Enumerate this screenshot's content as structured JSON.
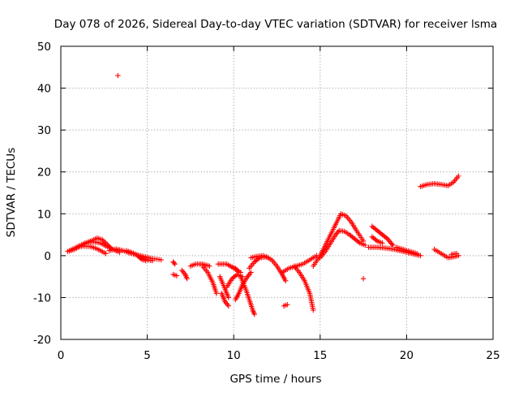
{
  "chart_data": {
    "type": "scatter",
    "title": "Day 078 of 2026, Sidereal Day-to-day VTEC variation (SDTVAR) for receiver lsma",
    "xlabel": "GPS time / hours",
    "ylabel": "SDTVAR / TECUs",
    "xlim": [
      0,
      25
    ],
    "ylim": [
      -20,
      50
    ],
    "xticks": [
      0,
      5,
      10,
      15,
      20,
      25
    ],
    "yticks": [
      -20,
      -10,
      0,
      10,
      20,
      30,
      40,
      50
    ],
    "grid": true,
    "marker": "+",
    "color": "#ff0000",
    "segments": [
      {
        "name": "arc-a",
        "points": [
          [
            0.4,
            1.0
          ],
          [
            0.8,
            1.5
          ],
          [
            1.2,
            2.5
          ],
          [
            1.6,
            3.2
          ],
          [
            1.9,
            3.3
          ],
          [
            2.3,
            3.0
          ],
          [
            2.6,
            2.3
          ],
          [
            3.0,
            1.5
          ],
          [
            3.4,
            0.8
          ]
        ]
      },
      {
        "name": "arc-b",
        "points": [
          [
            0.5,
            1.2
          ],
          [
            0.9,
            2.0
          ],
          [
            1.3,
            2.3
          ],
          [
            1.7,
            2.2
          ],
          [
            2.0,
            1.8
          ],
          [
            2.3,
            1.2
          ],
          [
            2.6,
            0.5
          ]
        ]
      },
      {
        "name": "arc-c",
        "points": [
          [
            1.0,
            2.2
          ],
          [
            1.4,
            3.0
          ],
          [
            1.8,
            3.6
          ],
          [
            2.1,
            4.2
          ],
          [
            2.4,
            3.8
          ],
          [
            2.7,
            2.6
          ],
          [
            2.9,
            1.8
          ]
        ]
      },
      {
        "name": "arc-d",
        "points": [
          [
            2.8,
            1.2
          ],
          [
            3.2,
            1.6
          ],
          [
            3.6,
            1.2
          ],
          [
            4.0,
            0.6
          ],
          [
            4.4,
            0.2
          ],
          [
            4.8,
            -0.2
          ],
          [
            5.2,
            -0.6
          ],
          [
            5.8,
            -1.0
          ]
        ]
      },
      {
        "name": "arc-e",
        "points": [
          [
            3.8,
            1.2
          ],
          [
            4.2,
            0.6
          ],
          [
            4.6,
            -0.3
          ],
          [
            5.0,
            -1.0
          ],
          [
            5.3,
            -1.2
          ]
        ]
      },
      {
        "name": "arc-f",
        "points": [
          [
            4.5,
            -0.3
          ],
          [
            4.7,
            -0.9
          ],
          [
            4.9,
            -1.2
          ]
        ]
      },
      {
        "name": "arc-g",
        "points": [
          [
            6.5,
            -1.5
          ],
          [
            6.6,
            -2.0
          ]
        ]
      },
      {
        "name": "arc-h",
        "points": [
          [
            6.5,
            -4.5
          ],
          [
            6.7,
            -4.8
          ]
        ]
      },
      {
        "name": "arc-i",
        "points": [
          [
            7.0,
            -3.5
          ],
          [
            7.2,
            -4.5
          ],
          [
            7.3,
            -5.5
          ]
        ]
      },
      {
        "name": "arc-j",
        "points": [
          [
            7.5,
            -2.5
          ],
          [
            7.8,
            -2.0
          ],
          [
            8.2,
            -2.0
          ],
          [
            8.6,
            -2.5
          ]
        ]
      },
      {
        "name": "arc-k",
        "points": [
          [
            8.2,
            -2.5
          ],
          [
            8.5,
            -4.0
          ],
          [
            8.8,
            -6.5
          ],
          [
            9.0,
            -9.0
          ]
        ]
      },
      {
        "name": "arc-l",
        "points": [
          [
            9.1,
            -2.0
          ],
          [
            9.6,
            -2.0
          ],
          [
            10.0,
            -3.0
          ],
          [
            10.4,
            -4.0
          ]
        ]
      },
      {
        "name": "arc-m",
        "points": [
          [
            9.2,
            -5.0
          ],
          [
            9.5,
            -8.0
          ],
          [
            9.7,
            -10.0
          ]
        ]
      },
      {
        "name": "arc-n",
        "points": [
          [
            9.3,
            -9.0
          ],
          [
            9.5,
            -11.0
          ],
          [
            9.7,
            -12.0
          ]
        ]
      },
      {
        "name": "arc-o",
        "points": [
          [
            9.6,
            -7.5
          ],
          [
            9.9,
            -5.5
          ],
          [
            10.2,
            -4.5
          ],
          [
            10.5,
            -5.0
          ]
        ]
      },
      {
        "name": "arc-p",
        "points": [
          [
            9.8,
            -2.5
          ],
          [
            10.1,
            -3.0
          ],
          [
            10.3,
            -4.0
          ]
        ]
      },
      {
        "name": "arc-q",
        "points": [
          [
            10.1,
            -10.5
          ],
          [
            10.3,
            -9.0
          ],
          [
            10.5,
            -7.0
          ],
          [
            10.8,
            -5.0
          ],
          [
            11.0,
            -4.0
          ]
        ]
      },
      {
        "name": "arc-r",
        "points": [
          [
            10.4,
            -5.0
          ],
          [
            10.7,
            -8.0
          ],
          [
            10.9,
            -10.5
          ],
          [
            11.1,
            -13.0
          ],
          [
            11.2,
            -14.0
          ]
        ]
      },
      {
        "name": "arc-s",
        "points": [
          [
            10.9,
            -3.0
          ],
          [
            11.2,
            -1.5
          ],
          [
            11.5,
            -0.5
          ],
          [
            11.9,
            -0.3
          ],
          [
            12.2,
            -1.0
          ],
          [
            12.5,
            -2.5
          ],
          [
            12.8,
            -4.5
          ],
          [
            13.0,
            -6.0
          ]
        ]
      },
      {
        "name": "arc-t",
        "points": [
          [
            11.0,
            -0.5
          ],
          [
            11.3,
            -0.2
          ],
          [
            11.7,
            0.0
          ],
          [
            12.0,
            -0.5
          ]
        ]
      },
      {
        "name": "arc-u",
        "points": [
          [
            12.9,
            -12.0
          ],
          [
            13.1,
            -11.7
          ]
        ]
      },
      {
        "name": "arc-v",
        "points": [
          [
            12.8,
            -4.0
          ],
          [
            13.2,
            -3.0
          ],
          [
            13.6,
            -2.5
          ],
          [
            14.0,
            -2.0
          ],
          [
            14.4,
            -1.0
          ],
          [
            14.8,
            0.0
          ]
        ]
      },
      {
        "name": "arc-w",
        "points": [
          [
            13.5,
            -2.5
          ],
          [
            13.8,
            -4.0
          ],
          [
            14.1,
            -6.0
          ],
          [
            14.4,
            -9.0
          ],
          [
            14.6,
            -13.0
          ]
        ]
      },
      {
        "name": "arc-x",
        "points": [
          [
            14.6,
            -2.5
          ],
          [
            15.0,
            0.0
          ],
          [
            15.3,
            2.5
          ],
          [
            15.6,
            5.0
          ],
          [
            15.9,
            7.5
          ],
          [
            16.2,
            10.0
          ],
          [
            16.5,
            9.5
          ],
          [
            16.8,
            8.0
          ],
          [
            17.1,
            6.0
          ],
          [
            17.5,
            3.5
          ]
        ]
      },
      {
        "name": "arc-y",
        "points": [
          [
            15.0,
            -0.5
          ],
          [
            15.3,
            1.0
          ],
          [
            15.6,
            3.0
          ],
          [
            15.9,
            5.0
          ],
          [
            16.1,
            6.0
          ],
          [
            16.4,
            5.8
          ],
          [
            16.7,
            5.0
          ],
          [
            17.0,
            4.0
          ],
          [
            17.3,
            3.0
          ],
          [
            17.6,
            2.5
          ]
        ]
      },
      {
        "name": "arc-z",
        "points": [
          [
            17.5,
            -5.5
          ]
        ]
      },
      {
        "name": "arc-aa",
        "points": [
          [
            18.0,
            7.0
          ],
          [
            18.3,
            6.0
          ],
          [
            18.6,
            5.0
          ],
          [
            18.9,
            4.0
          ],
          [
            19.1,
            3.0
          ],
          [
            19.2,
            2.5
          ]
        ]
      },
      {
        "name": "arc-ab",
        "points": [
          [
            18.0,
            4.5
          ],
          [
            18.3,
            3.5
          ],
          [
            18.6,
            3.0
          ]
        ]
      },
      {
        "name": "arc-ac",
        "points": [
          [
            17.8,
            2.0
          ],
          [
            18.3,
            2.0
          ],
          [
            18.8,
            1.8
          ],
          [
            19.3,
            1.5
          ],
          [
            19.8,
            1.0
          ],
          [
            20.3,
            0.5
          ],
          [
            20.8,
            0.0
          ]
        ]
      },
      {
        "name": "arc-ad",
        "points": [
          [
            19.4,
            2.0
          ],
          [
            19.8,
            1.5
          ],
          [
            20.2,
            1.0
          ],
          [
            20.6,
            0.5
          ]
        ]
      },
      {
        "name": "arc-ae",
        "points": [
          [
            20.8,
            16.5
          ],
          [
            21.2,
            17.0
          ],
          [
            21.6,
            17.2
          ],
          [
            22.0,
            17.0
          ],
          [
            22.4,
            16.7
          ],
          [
            22.7,
            17.5
          ],
          [
            23.0,
            19.0
          ]
        ]
      },
      {
        "name": "arc-af",
        "points": [
          [
            21.6,
            1.5
          ],
          [
            22.0,
            0.5
          ],
          [
            22.4,
            -0.5
          ],
          [
            22.8,
            -0.2
          ],
          [
            23.0,
            0.0
          ]
        ]
      },
      {
        "name": "arc-ag",
        "points": [
          [
            22.6,
            0.3
          ],
          [
            22.9,
            0.5
          ]
        ]
      },
      {
        "name": "arc-ah",
        "points": [
          [
            3.3,
            43.0
          ]
        ]
      }
    ]
  }
}
